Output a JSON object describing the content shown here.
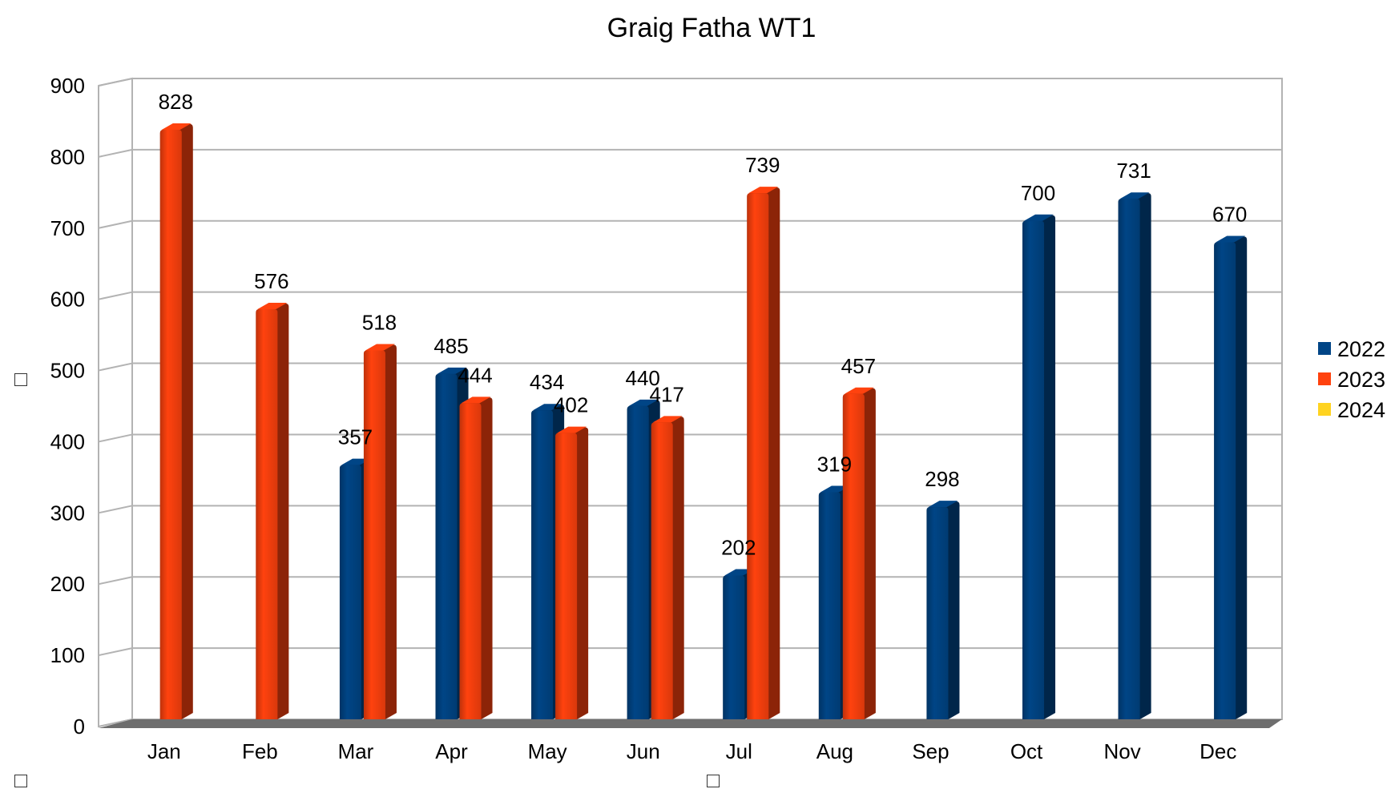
{
  "chart_data": {
    "type": "bar",
    "title": "Graig Fatha WT1",
    "xlabel": "",
    "ylabel": "",
    "categories": [
      "Jan",
      "Feb",
      "Mar",
      "Apr",
      "May",
      "Jun",
      "Jul",
      "Aug",
      "Sep",
      "Oct",
      "Nov",
      "Dec"
    ],
    "series": [
      {
        "name": "2022",
        "color": "#004586",
        "values": [
          null,
          null,
          357,
          485,
          434,
          440,
          202,
          319,
          298,
          700,
          731,
          670
        ]
      },
      {
        "name": "2023",
        "color": "#ff420e",
        "values": [
          828,
          576,
          518,
          444,
          402,
          417,
          739,
          457,
          null,
          null,
          null,
          null
        ]
      },
      {
        "name": "2024",
        "color": "#ffd320",
        "values": [
          null,
          null,
          null,
          null,
          null,
          null,
          null,
          null,
          null,
          null,
          null,
          null
        ]
      }
    ],
    "ylim": [
      0,
      900
    ],
    "yticks": [
      0,
      100,
      200,
      300,
      400,
      500,
      600,
      700,
      800,
      900
    ],
    "grid": true,
    "legend_position": "right",
    "style": "3d-cylinder"
  }
}
